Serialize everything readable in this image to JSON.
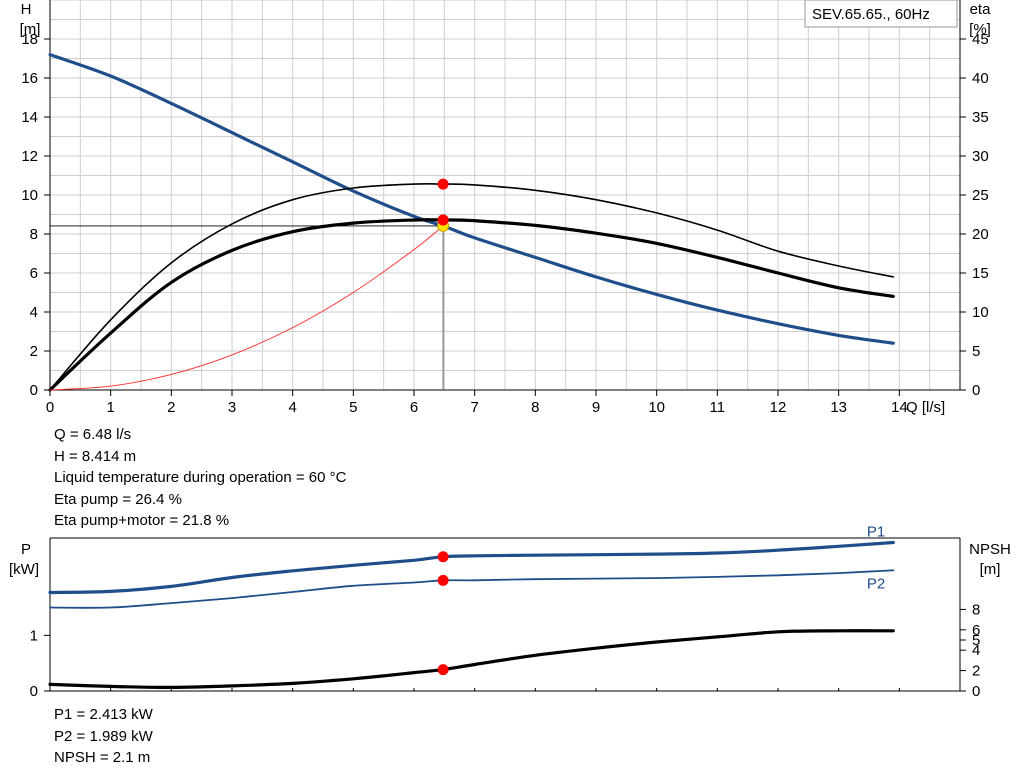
{
  "chart_data": [
    {
      "type": "line",
      "title": "SEV.65.65., 60Hz",
      "xlabel": "Q [l/s]",
      "ylabel": "H [m]",
      "ylabel_line1": "H",
      "ylabel_line2": "[m]",
      "y2label_line1": "eta",
      "y2label_line2": "[%]",
      "xlim": [
        0,
        15
      ],
      "ylim": [
        0,
        20
      ],
      "y2lim": [
        0,
        50
      ],
      "xticks": [
        0,
        1,
        2,
        3,
        4,
        5,
        6,
        7,
        8,
        9,
        10,
        11,
        12,
        13,
        14
      ],
      "yticks": [
        0,
        2,
        4,
        6,
        8,
        10,
        12,
        14,
        16,
        18
      ],
      "y2ticks": [
        0,
        5,
        10,
        15,
        20,
        25,
        30,
        35,
        40,
        45
      ],
      "grid": true,
      "series": [
        {
          "key": "H",
          "axis": "left",
          "color": "#1f4e8a",
          "width": 3.2,
          "x": [
            0,
            1,
            2,
            3,
            4,
            5,
            6,
            6.48,
            7,
            8,
            9,
            10,
            11,
            12,
            13,
            13.9
          ],
          "y": [
            17.2,
            16.1,
            14.7,
            13.2,
            11.7,
            10.2,
            8.9,
            8.414,
            7.8,
            6.8,
            5.8,
            4.9,
            4.1,
            3.4,
            2.8,
            2.4
          ]
        },
        {
          "key": "eta_pump",
          "axis": "right",
          "color": "#000000",
          "width": 1.6,
          "x": [
            0,
            1,
            2,
            3,
            4,
            5,
            6,
            6.48,
            7,
            8,
            9,
            10,
            11,
            12,
            13,
            13.9
          ],
          "y": [
            0,
            9.0,
            16.3,
            21.3,
            24.4,
            25.9,
            26.4,
            26.4,
            26.3,
            25.6,
            24.4,
            22.7,
            20.5,
            17.8,
            15.9,
            14.5
          ]
        },
        {
          "key": "eta_pump_motor",
          "axis": "right",
          "color": "#000000",
          "width": 3.2,
          "x": [
            0,
            1,
            2,
            3,
            4,
            5,
            6,
            6.48,
            7,
            8,
            9,
            10,
            11,
            12,
            13,
            13.9
          ],
          "y": [
            0,
            7.3,
            13.8,
            17.9,
            20.3,
            21.4,
            21.8,
            21.8,
            21.7,
            21.1,
            20.1,
            18.8,
            17.0,
            15.0,
            13.1,
            12.0
          ]
        },
        {
          "key": "system",
          "axis": "left",
          "color": "#ff2a2a",
          "width": 0.9,
          "x": [
            0,
            1,
            2,
            3,
            4,
            5,
            6,
            6.48
          ],
          "y": [
            0,
            0.2,
            0.8,
            1.8,
            3.2,
            5.0,
            7.2,
            8.414
          ]
        }
      ],
      "duty_point": {
        "q": 6.48,
        "h": 8.414
      },
      "markers": [
        {
          "axis": "right",
          "x": 6.48,
          "y": 26.4,
          "color": "#ff0000"
        },
        {
          "axis": "right",
          "x": 6.48,
          "y": 21.8,
          "color": "#ff0000"
        },
        {
          "axis": "left",
          "x": 6.48,
          "y": 8.414,
          "color": "#ffe000"
        }
      ]
    },
    {
      "type": "line",
      "ylabel_line1": "P",
      "ylabel_line2": "[kW]",
      "y2label_line1": "NPSH",
      "y2label_line2": "[m]",
      "xlim": [
        0,
        15
      ],
      "ylim": [
        0,
        2.75
      ],
      "yticks": [
        0,
        1
      ],
      "y2lim": [
        0,
        20
      ],
      "y2ticks": [
        0,
        2,
        4,
        5,
        6,
        8
      ],
      "series": [
        {
          "key": "P1",
          "name": "P1",
          "axis": "left",
          "color": "#1f4e8a",
          "width": 3.2,
          "x": [
            0,
            1,
            2,
            3,
            4,
            5,
            6,
            6.48,
            7,
            8,
            9,
            10,
            11,
            12,
            13,
            13.9
          ],
          "y": [
            1.77,
            1.79,
            1.88,
            2.04,
            2.16,
            2.26,
            2.35,
            2.413,
            2.43,
            2.44,
            2.45,
            2.46,
            2.48,
            2.53,
            2.6,
            2.67
          ]
        },
        {
          "key": "P2",
          "name": "P2",
          "axis": "left",
          "color": "#1f4e8a",
          "width": 1.8,
          "x": [
            0,
            1,
            2,
            3,
            4,
            5,
            6,
            6.48,
            7,
            8,
            9,
            10,
            11,
            12,
            13,
            13.9
          ],
          "y": [
            1.5,
            1.5,
            1.58,
            1.67,
            1.78,
            1.89,
            1.95,
            1.989,
            1.99,
            2.01,
            2.02,
            2.03,
            2.05,
            2.08,
            2.12,
            2.17
          ]
        },
        {
          "key": "NPSH",
          "axis": "right",
          "color": "#000000",
          "width": 3.2,
          "x": [
            0,
            1,
            2,
            3,
            4,
            5,
            6,
            6.48,
            7,
            8,
            9,
            10,
            11,
            12,
            13,
            13.9
          ],
          "y": [
            0.65,
            0.45,
            0.35,
            0.5,
            0.75,
            1.2,
            1.8,
            2.1,
            2.6,
            3.5,
            4.2,
            4.8,
            5.3,
            5.8,
            5.9,
            5.9
          ]
        }
      ],
      "markers": [
        {
          "axis": "left",
          "x": 6.48,
          "y": 2.413,
          "color": "#ff0000"
        },
        {
          "axis": "left",
          "x": 6.48,
          "y": 1.989,
          "color": "#ff0000"
        },
        {
          "axis": "right",
          "x": 6.48,
          "y": 2.1,
          "color": "#ff0000"
        }
      ]
    }
  ],
  "info_top": [
    "Q = 6.48 l/s",
    "H = 8.414 m",
    "Liquid temperature during operation = 60 °C",
    "Eta pump = 26.4 %",
    "Eta pump+motor = 21.8 %"
  ],
  "info_bottom": [
    "P1 = 2.413 kW",
    "P2 = 1.989 kW",
    "NPSH = 2.1 m"
  ]
}
